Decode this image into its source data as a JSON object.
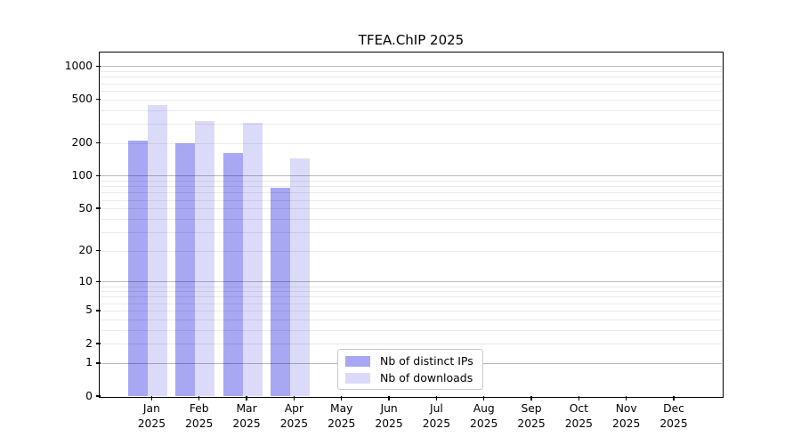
{
  "title": "TFEA.ChIP 2025",
  "chart_data": {
    "type": "bar",
    "title": "TFEA.ChIP 2025",
    "categories": [
      "Jan 2025",
      "Feb 2025",
      "Mar 2025",
      "Apr 2025",
      "May 2025",
      "Jun 2025",
      "Jul 2025",
      "Aug 2025",
      "Sep 2025",
      "Oct 2025",
      "Nov 2025",
      "Dec 2025"
    ],
    "series": [
      {
        "name": "Nb of distinct IPs",
        "color": "#a7a7f4",
        "values": [
          210,
          197,
          160,
          78,
          0,
          0,
          0,
          0,
          0,
          0,
          0,
          0
        ]
      },
      {
        "name": "Nb of downloads",
        "color": "#dbdbf9",
        "values": [
          440,
          315,
          305,
          145,
          0,
          0,
          0,
          0,
          0,
          0,
          0,
          0
        ]
      }
    ],
    "xlabel": "",
    "ylabel": "",
    "y_ticks": [
      0,
      1,
      2,
      5,
      10,
      20,
      50,
      100,
      200,
      500,
      1000
    ],
    "y_scale": "log10(1+x)",
    "ylim": [
      0,
      1300
    ],
    "grid": "horizontal, major at powers of 10 + minor",
    "legend_position": "bottom-center"
  }
}
